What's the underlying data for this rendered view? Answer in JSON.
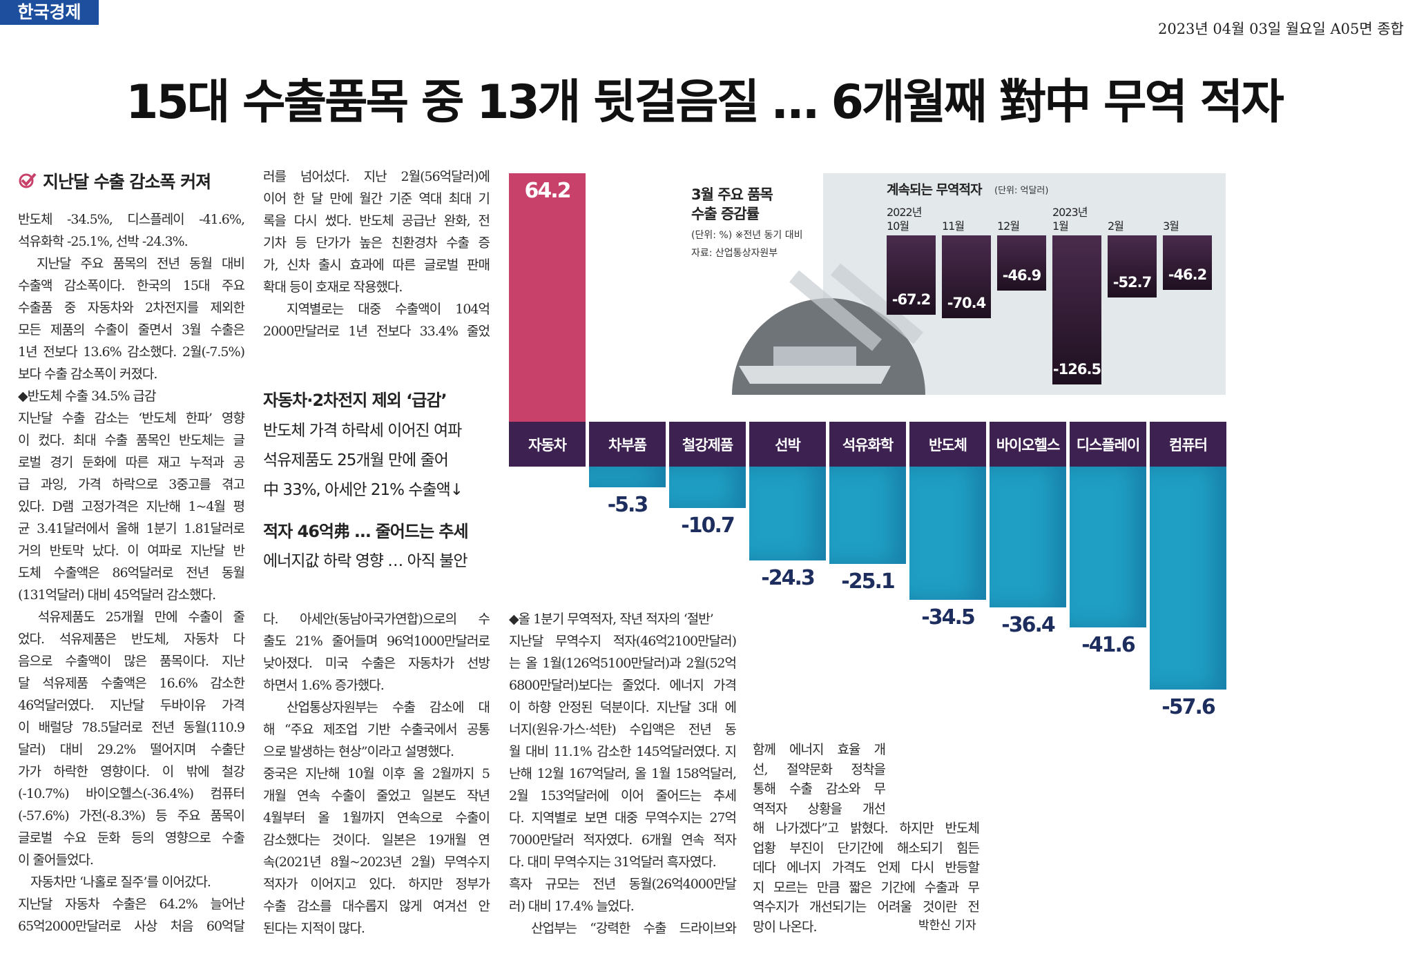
{
  "header": {
    "brand": "한국경제",
    "dateline": "2023년 04월 03일 월요일 A05면 종합"
  },
  "headline": "15대 수출품목 중 13개 뒷걸음질 … 6개월째 對中 무역 적자",
  "article": {
    "section_title": "지난달 수출 감소폭 커져",
    "columns": [
      {
        "lines": [
          "반도체 -34.5%, 디스플레이 -41.6%,",
          "석유화학 -25.1%, 선박 -24.3%.",
          "　지난달 주요 품목의 전년 동월 대비",
          "수출액 감소폭이다. 한국의 15대 주요",
          "수출품 중 자동차와 2차전지를 제외한",
          "모든 제품의 수출이 줄면서 3월 수출은",
          "1년 전보다 13.6% 감소했다. 2월(-7.5%)",
          "보다 수출 감소폭이 커졌다.",
          "◆반도체 수출 34.5% 급감",
          "지난달 수출 감소는 ‘반도체 한파’ 영향",
          "이 컸다. 최대 수출 품목인 반도체는 글",
          "로벌 경기 둔화에 따른 재고 누적과 공",
          "급 과잉, 가격 하락으로 3중고를 겪고",
          "있다. D램 고정가격은 지난해 1~4월 평",
          "균 3.41달러에서 올해 1분기 1.81달러로",
          "거의 반토막 났다. 이 여파로 지난달 반",
          "도체 수출액은 86억달러로 전년 동월",
          "(131억달러) 대비 45억달러 감소했다.",
          "　석유제품도 25개월 만에 수출이 줄",
          "었다. 석유제품은 반도체, 자동차 다",
          "음으로 수출액이 많은 품목이다. 지난",
          "달 석유제품 수출액은 16.6% 감소한",
          "46억달러였다. 지난달 두바이유 가격",
          "이 배럴당 78.5달러로 전년 동월(110.9",
          "달러) 대비 29.2% 떨어지며 수출단",
          "가가 하락한 영향이다. 이 밖에 철강",
          "(-10.7%) 바이오헬스(-36.4%) 컴퓨터",
          "(-57.6%) 가전(-8.3%) 등 주요 품목이",
          "글로벌 수요 둔화 등의 영향으로 수출",
          "이 줄어들었다.",
          "　자동차만 ‘나홀로 질주’를 이어갔다.",
          "지난달 자동차 수출은 64.2% 늘어난",
          "65억2000만달러로 사상 처음 60억달"
        ]
      },
      {
        "lines": [
          "러를 넘어섰다. 지난 2월(56억달러)에",
          "이어 한 달 만에 월간 기준 역대 최대 기",
          "록을 다시 썼다. 반도체 공급난 완화, 전",
          "기차 등 단가가 높은 친환경차 수출 증",
          "가, 신차 출시 효과에 따른 글로벌 판매",
          "확대 등이 호재로 작용했다.",
          "　지역별로는 대중 수출액이 104억",
          "2000만달러로 1년 전보다 33.4% 줄었"
        ]
      },
      {
        "lines": [
          "다. 아세안(동남아국가연합)으로의 수",
          "출도 21% 줄어들며 96억1000만달러로",
          "낮아졌다. 미국 수출은 자동차가 선방",
          "하면서 1.6% 증가했다.",
          "　산업통상자원부는 수출 감소에 대",
          "해 “주요 제조업 기반 수출국에서 공통",
          "으로 발생하는 현상”이라고 설명했다.",
          "중국은 지난해 10월 이후 올 2월까지 5",
          "개월 연속 수출이 줄었고 일본도 작년",
          "4월부터 올 1월까지 연속으로 수출이",
          "감소했다는 것이다. 일본은 19개월 연",
          "속(2021년 8월~2023년 2월) 무역수지",
          "적자가 이어지고 있다. 하지만 정부가",
          "수출 감소를 대수롭지 않게 여겨선 안",
          "된다는 지적이 많다."
        ]
      },
      {
        "lines": [
          "◆올 1분기 무역적자, 작년 적자의 ‘절반’",
          "지난달 무역수지 적자(46억2100만달러)",
          "는 올 1월(126억5100만달러)과 2월(52억",
          "6800만달러)보다는 줄었다. 에너지 가격",
          "이 하향 안정된 덕분이다. 지난달 3대 에",
          "너지(원유·가스·석탄) 수입액은 전년 동",
          "월 대비 11.1% 감소한 145억달러였다. 지",
          "난해 12월 167억달러, 올 1월 158억달러,",
          "2월 153억달러에 이어 줄어드는 추세",
          "다. 지역별로 보면 대중 무역수지는 27억",
          "7000만달러 적자였다. 6개월 연속 적자",
          "다. 대미 무역수지는 31억달러 흑자였다.",
          "흑자 규모는 전년 동월(26억4000만달",
          "러) 대비 17.4% 늘었다.",
          "　산업부는 “강력한 수출 드라이브와"
        ]
      },
      {
        "lines": [
          "함께 에너지 효율 개",
          "선, 절약문화 정착을",
          "통해 수출 감소와 무",
          "역적자 상황을 개선",
          "해 나가겠다”고 밝혔다. 하지만 반도체",
          "업황 부진이 단기간에 해소되기 힘든",
          "데다 에너지 가격도 언제 다시 반등할",
          "지 모르는 만큼 짧은 기간에 수출과 무",
          "역수지가 개선되기는 어려울 것이란 전",
          "망이 나온다."
        ]
      }
    ],
    "decks": [
      {
        "title": "자동차·2차전지 제외 ‘급감’",
        "lines": [
          "반도체 가격 하락세 이어진 여파",
          "석유제품도 25개월 만에 줄어",
          "中 33%, 아세안 21% 수출액↓"
        ]
      },
      {
        "title": "적자 46억弗 … 줄어드는 추세",
        "lines": [
          "에너지값 하락 영향 … 아직 불안"
        ]
      }
    ],
    "byline": "박한신 기자"
  },
  "chart_data": [
    {
      "type": "bar",
      "title": "3월 주요 품목 수출 증감률",
      "subtitle": "(단위: %) ※전년 동기 대비",
      "source": "자료: 산업통상자원부",
      "categories": [
        "자동차",
        "차부품",
        "철강제품",
        "선박",
        "석유화학",
        "반도체",
        "바이오헬스",
        "디스플레이",
        "컴퓨터"
      ],
      "values": [
        64.2,
        -5.3,
        -10.7,
        -24.3,
        -25.1,
        -34.5,
        -36.4,
        -41.6,
        -57.6
      ],
      "colors": {
        "positive": "#c8416b",
        "negative": "#1f9fc4"
      }
    },
    {
      "type": "bar",
      "title": "계속되는 무역적자",
      "subtitle": "(단위: 억달러)",
      "categories": [
        "2022년 10월",
        "11월",
        "12월",
        "2023년 1월",
        "2월",
        "3월"
      ],
      "values": [
        -67.2,
        -70.4,
        -46.9,
        -126.5,
        -52.7,
        -46.2
      ],
      "color": "#4a2b4d"
    }
  ]
}
